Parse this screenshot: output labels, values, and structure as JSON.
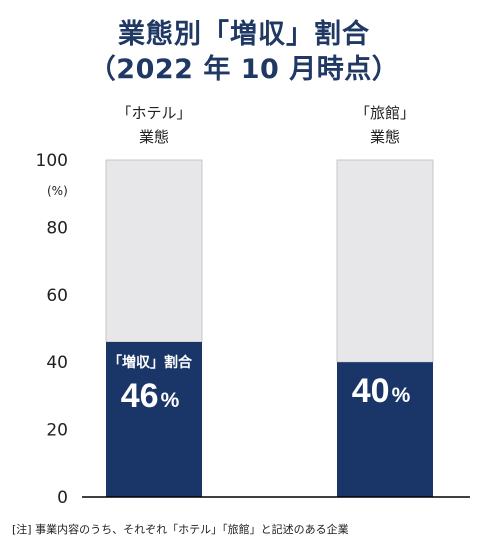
{
  "title_line1": "業態別「増収」割合",
  "title_line2": "（2022 年 10 月時点）",
  "footnote": "[注] 事業内容のうち、それぞれ「ホテル」「旅館」と記述のある企業",
  "chart_data": {
    "type": "bar",
    "stacked": true,
    "title": "業態別「増収」割合（2022 年 10 月時点）",
    "ylabel": "(%)",
    "ylim": [
      0,
      100
    ],
    "yticks": [
      0,
      20,
      40,
      60,
      80,
      100
    ],
    "grid": false,
    "categories": [
      {
        "line1": "「ホテル」",
        "line2": "業態"
      },
      {
        "line1": "「旅館」",
        "line2": "業態"
      }
    ],
    "values": [
      46,
      40
    ],
    "value_labels": [
      "46",
      "40"
    ],
    "value_unit": "%",
    "series_label": "「増収」割合",
    "colors": {
      "value": "#1a3668",
      "remainder": "#e7e6e9",
      "axis": "#000000",
      "text": "#222222",
      "title": "#1f3864"
    }
  }
}
